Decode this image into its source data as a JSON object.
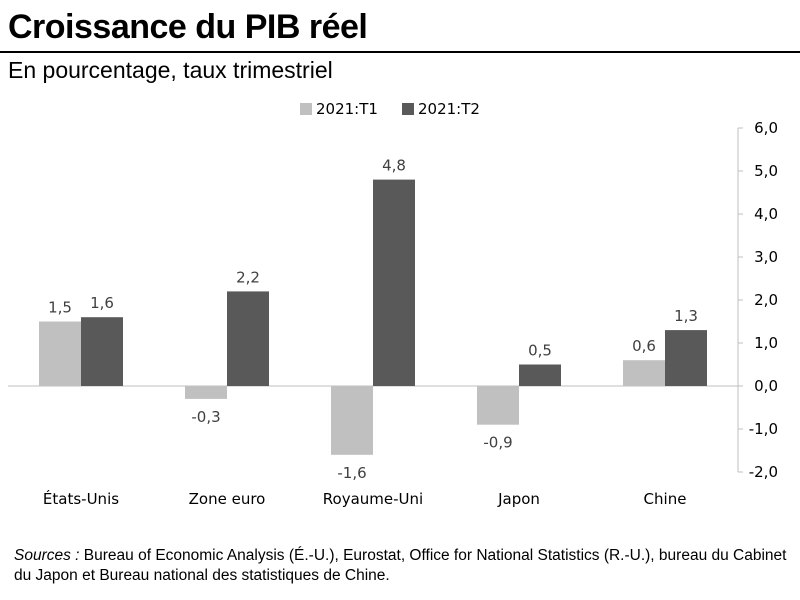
{
  "header": {
    "title": "Croissance du PIB réel",
    "subtitle": "En pourcentage, taux trimestriel"
  },
  "source": {
    "label": "Sources :",
    "text": "Bureau of Economic Analysis (É.-U.), Eurostat, Office for National Statistics (R.-U.), bureau du Cabinet du Japon et Bureau national des statistiques de Chine."
  },
  "chart_data": {
    "type": "bar",
    "categories": [
      "États-Unis",
      "Zone euro",
      "Royaume-Uni",
      "Japon",
      "Chine"
    ],
    "series": [
      {
        "name": "2021:T1",
        "color": "#c0c0c0",
        "values": [
          1.5,
          -0.3,
          -1.6,
          -0.9,
          0.6
        ],
        "labels": [
          "1,5",
          "-0,3",
          "-1,6",
          "-0,9",
          "0,6"
        ]
      },
      {
        "name": "2021:T2",
        "color": "#595959",
        "values": [
          1.6,
          2.2,
          4.8,
          0.5,
          1.3
        ],
        "labels": [
          "1,6",
          "2,2",
          "4,8",
          "0,5",
          "1,3"
        ]
      }
    ],
    "y_ticks": [
      "6,0",
      "5,0",
      "4,0",
      "3,0",
      "2,0",
      "1,0",
      "0,0",
      "-1,0",
      "-2,0"
    ],
    "ylim": [
      -2,
      6
    ],
    "y_axis_position": "right",
    "legend_position": "top",
    "grid": false
  }
}
